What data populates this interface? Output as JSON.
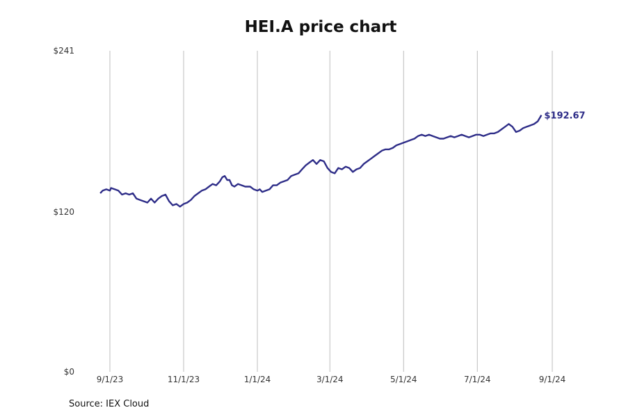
{
  "chart_data": {
    "type": "line",
    "title": "HEI.A price chart",
    "source": "Source: IEX Cloud",
    "xlabel": "",
    "ylabel": "",
    "ylim": [
      0,
      241
    ],
    "y_ticks": [
      {
        "value": 0,
        "label": "$0"
      },
      {
        "value": 120,
        "label": "$120"
      },
      {
        "value": 241,
        "label": "$241"
      }
    ],
    "x_ticks": [
      {
        "date": "2023-09-01",
        "label": "9/1/23"
      },
      {
        "date": "2023-11-01",
        "label": "11/1/23"
      },
      {
        "date": "2024-01-01",
        "label": "1/1/24"
      },
      {
        "date": "2024-03-01",
        "label": "3/1/24"
      },
      {
        "date": "2024-05-01",
        "label": "5/1/24"
      },
      {
        "date": "2024-07-01",
        "label": "7/1/24"
      },
      {
        "date": "2024-09-01",
        "label": "9/1/24"
      }
    ],
    "x_range": [
      "2023-08-24",
      "2024-09-01"
    ],
    "grid": "vertical",
    "line_color": "#2e2d88",
    "last_value_label": "$192.67",
    "series": [
      {
        "name": "HEI.A",
        "points": [
          [
            "2023-08-24",
            134
          ],
          [
            "2023-08-26",
            136
          ],
          [
            "2023-08-29",
            137
          ],
          [
            "2023-09-01",
            136
          ],
          [
            "2023-09-02",
            138
          ],
          [
            "2023-09-05",
            137
          ],
          [
            "2023-09-08",
            136
          ],
          [
            "2023-09-11",
            133
          ],
          [
            "2023-09-14",
            134
          ],
          [
            "2023-09-17",
            133
          ],
          [
            "2023-09-20",
            134
          ],
          [
            "2023-09-23",
            130
          ],
          [
            "2023-09-26",
            129
          ],
          [
            "2023-09-29",
            128
          ],
          [
            "2023-10-02",
            127
          ],
          [
            "2023-10-05",
            130
          ],
          [
            "2023-10-08",
            127
          ],
          [
            "2023-10-11",
            130
          ],
          [
            "2023-10-14",
            132
          ],
          [
            "2023-10-17",
            133
          ],
          [
            "2023-10-20",
            128
          ],
          [
            "2023-10-23",
            125
          ],
          [
            "2023-10-26",
            126
          ],
          [
            "2023-10-29",
            124
          ],
          [
            "2023-11-01",
            126
          ],
          [
            "2023-11-04",
            127
          ],
          [
            "2023-11-07",
            129
          ],
          [
            "2023-11-10",
            132
          ],
          [
            "2023-11-13",
            134
          ],
          [
            "2023-11-16",
            136
          ],
          [
            "2023-11-19",
            137
          ],
          [
            "2023-11-22",
            139
          ],
          [
            "2023-11-25",
            141
          ],
          [
            "2023-11-28",
            140
          ],
          [
            "2023-12-01",
            143
          ],
          [
            "2023-12-03",
            146
          ],
          [
            "2023-12-05",
            147
          ],
          [
            "2023-12-07",
            144
          ],
          [
            "2023-12-09",
            144
          ],
          [
            "2023-12-11",
            140
          ],
          [
            "2023-12-13",
            139
          ],
          [
            "2023-12-16",
            141
          ],
          [
            "2023-12-19",
            140
          ],
          [
            "2023-12-22",
            139
          ],
          [
            "2023-12-26",
            139
          ],
          [
            "2023-12-29",
            137
          ],
          [
            "2024-01-01",
            136
          ],
          [
            "2024-01-03",
            137
          ],
          [
            "2024-01-05",
            135
          ],
          [
            "2024-01-08",
            136
          ],
          [
            "2024-01-11",
            137
          ],
          [
            "2024-01-14",
            140
          ],
          [
            "2024-01-17",
            140
          ],
          [
            "2024-01-20",
            142
          ],
          [
            "2024-01-23",
            143
          ],
          [
            "2024-01-26",
            144
          ],
          [
            "2024-01-29",
            147
          ],
          [
            "2024-02-01",
            148
          ],
          [
            "2024-02-04",
            149
          ],
          [
            "2024-02-07",
            152
          ],
          [
            "2024-02-10",
            155
          ],
          [
            "2024-02-13",
            157
          ],
          [
            "2024-02-16",
            159
          ],
          [
            "2024-02-19",
            156
          ],
          [
            "2024-02-22",
            159
          ],
          [
            "2024-02-25",
            158
          ],
          [
            "2024-02-28",
            153
          ],
          [
            "2024-03-02",
            150
          ],
          [
            "2024-03-05",
            149
          ],
          [
            "2024-03-08",
            153
          ],
          [
            "2024-03-11",
            152
          ],
          [
            "2024-03-14",
            154
          ],
          [
            "2024-03-17",
            153
          ],
          [
            "2024-03-20",
            150
          ],
          [
            "2024-03-23",
            152
          ],
          [
            "2024-03-26",
            153
          ],
          [
            "2024-03-29",
            156
          ],
          [
            "2024-04-01",
            158
          ],
          [
            "2024-04-04",
            160
          ],
          [
            "2024-04-07",
            162
          ],
          [
            "2024-04-10",
            164
          ],
          [
            "2024-04-13",
            166
          ],
          [
            "2024-04-16",
            167
          ],
          [
            "2024-04-19",
            167
          ],
          [
            "2024-04-22",
            168
          ],
          [
            "2024-04-25",
            170
          ],
          [
            "2024-04-28",
            171
          ],
          [
            "2024-05-01",
            172
          ],
          [
            "2024-05-04",
            173
          ],
          [
            "2024-05-07",
            174
          ],
          [
            "2024-05-10",
            175
          ],
          [
            "2024-05-13",
            177
          ],
          [
            "2024-05-16",
            178
          ],
          [
            "2024-05-19",
            177
          ],
          [
            "2024-05-22",
            178
          ],
          [
            "2024-05-25",
            177
          ],
          [
            "2024-05-28",
            176
          ],
          [
            "2024-05-31",
            175
          ],
          [
            "2024-06-03",
            175
          ],
          [
            "2024-06-06",
            176
          ],
          [
            "2024-06-09",
            177
          ],
          [
            "2024-06-12",
            176
          ],
          [
            "2024-06-15",
            177
          ],
          [
            "2024-06-18",
            178
          ],
          [
            "2024-06-21",
            177
          ],
          [
            "2024-06-24",
            176
          ],
          [
            "2024-06-27",
            177
          ],
          [
            "2024-06-30",
            178
          ],
          [
            "2024-07-03",
            178
          ],
          [
            "2024-07-06",
            177
          ],
          [
            "2024-07-09",
            178
          ],
          [
            "2024-07-12",
            179
          ],
          [
            "2024-07-15",
            179
          ],
          [
            "2024-07-18",
            180
          ],
          [
            "2024-07-21",
            182
          ],
          [
            "2024-07-24",
            184
          ],
          [
            "2024-07-27",
            186
          ],
          [
            "2024-07-30",
            184
          ],
          [
            "2024-08-02",
            180
          ],
          [
            "2024-08-05",
            181
          ],
          [
            "2024-08-08",
            183
          ],
          [
            "2024-08-11",
            184
          ],
          [
            "2024-08-14",
            185
          ],
          [
            "2024-08-17",
            186
          ],
          [
            "2024-08-20",
            188
          ],
          [
            "2024-08-23",
            192.67
          ]
        ]
      }
    ]
  }
}
